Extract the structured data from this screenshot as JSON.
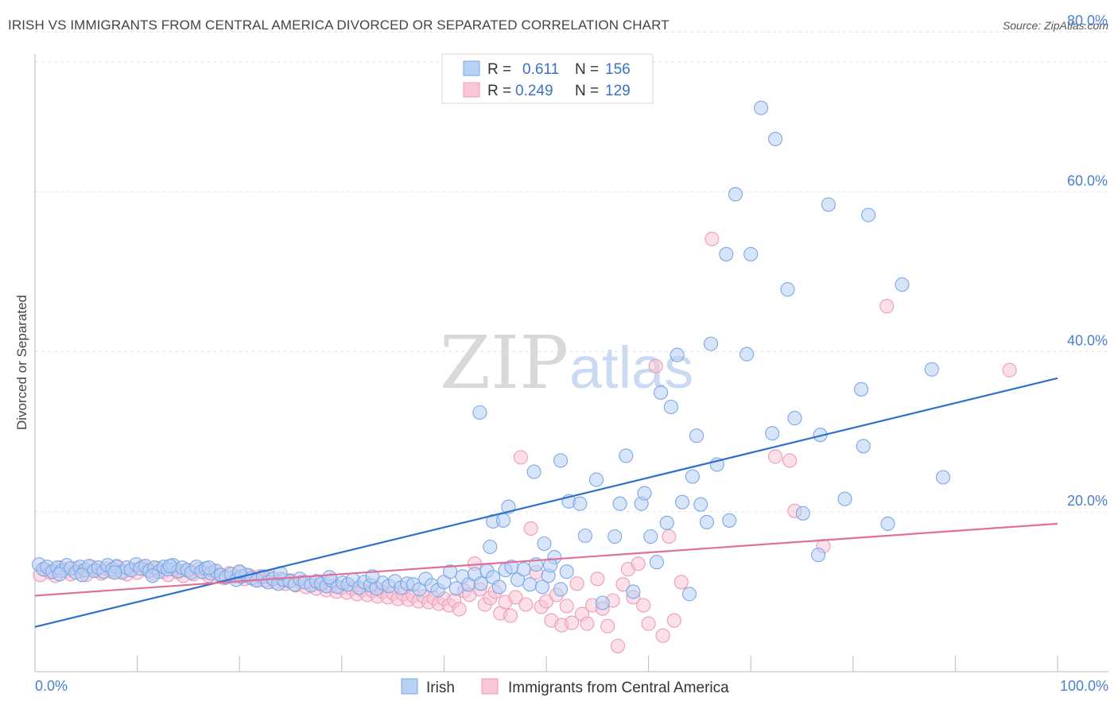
{
  "title": "IRISH VS IMMIGRANTS FROM CENTRAL AMERICA DIVORCED OR SEPARATED CORRELATION CHART",
  "source": "Source: ZipAtlas.com",
  "watermark": {
    "zip": "ZIP",
    "atlas": "atlas"
  },
  "legend": {
    "rows": [
      {
        "r_label": "R = ",
        "r_value": "0.611",
        "n_label": "N = ",
        "n_value": "156"
      },
      {
        "r_label": "R = ",
        "r_value": "0.249",
        "n_label": "N = ",
        "n_value": "129"
      }
    ]
  },
  "bottom_legend": [
    "Irish",
    "Immigrants from Central America"
  ],
  "chart_data": {
    "type": "scatter",
    "title": "IRISH VS IMMIGRANTS FROM CENTRAL AMERICA DIVORCED OR SEPARATED CORRELATION CHART",
    "xlabel": "",
    "ylabel": "Divorced or Separated",
    "xlim": [
      0,
      100
    ],
    "ylim": [
      0,
      82
    ],
    "x_ticks": [
      "0.0%",
      "100.0%"
    ],
    "y_ticks": [
      {
        "value": 20,
        "label": "20.0%"
      },
      {
        "value": 40,
        "label": "40.0%"
      },
      {
        "value": 60,
        "label": "60.0%"
      },
      {
        "value": 80,
        "label": "80.0%"
      }
    ],
    "grid": true,
    "legend_position": "top-center",
    "colors": {
      "irish": "#7aa8e8",
      "irish_fill": "#b8d0f4",
      "irish_line": "#2f6fcf",
      "ca": "#f09ab8",
      "ca_fill": "#f8c6d6",
      "ca_line": "#e0709a"
    },
    "series": [
      {
        "name": "Irish",
        "r": 0.611,
        "n": 156,
        "trend": [
          [
            0,
            5.6
          ],
          [
            100,
            36.7
          ]
        ],
        "points": [
          [
            0.4,
            13.4
          ],
          [
            0.8,
            12.8
          ],
          [
            1.2,
            13.1
          ],
          [
            1.7,
            12.5
          ],
          [
            2.2,
            13.0
          ],
          [
            2.6,
            12.6
          ],
          [
            3.1,
            13.3
          ],
          [
            3.5,
            12.9
          ],
          [
            4.0,
            12.4
          ],
          [
            4.4,
            13.1
          ],
          [
            4.9,
            12.7
          ],
          [
            5.3,
            13.2
          ],
          [
            5.8,
            12.6
          ],
          [
            6.2,
            13.0
          ],
          [
            6.7,
            12.5
          ],
          [
            7.1,
            13.3
          ],
          [
            7.6,
            12.8
          ],
          [
            8.0,
            13.1
          ],
          [
            8.5,
            12.4
          ],
          [
            9.0,
            13.0
          ],
          [
            9.4,
            12.7
          ],
          [
            9.9,
            13.4
          ],
          [
            10.3,
            12.9
          ],
          [
            10.8,
            13.2
          ],
          [
            11.2,
            12.6
          ],
          [
            11.7,
            13.0
          ],
          [
            12.1,
            12.5
          ],
          [
            12.6,
            13.1
          ],
          [
            13.0,
            12.8
          ],
          [
            13.5,
            13.3
          ],
          [
            14.0,
            12.6
          ],
          [
            14.4,
            13.0
          ],
          [
            14.9,
            12.7
          ],
          [
            15.3,
            12.4
          ],
          [
            15.8,
            13.1
          ],
          [
            16.3,
            12.5
          ],
          [
            16.7,
            12.9
          ],
          [
            17.2,
            12.3
          ],
          [
            17.7,
            12.6
          ],
          [
            18.2,
            12.1
          ],
          [
            18.7,
            11.8
          ],
          [
            19.2,
            12.2
          ],
          [
            19.7,
            11.5
          ],
          [
            20.2,
            11.9
          ],
          [
            20.7,
            12.1
          ],
          [
            21.2,
            11.7
          ],
          [
            21.7,
            11.4
          ],
          [
            22.3,
            11.9
          ],
          [
            22.8,
            11.2
          ],
          [
            23.3,
            11.6
          ],
          [
            23.8,
            11.0
          ],
          [
            24.3,
            11.5
          ],
          [
            24.9,
            11.3
          ],
          [
            25.4,
            10.9
          ],
          [
            25.9,
            11.6
          ],
          [
            26.4,
            11.2
          ],
          [
            27.0,
            10.8
          ],
          [
            27.5,
            11.3
          ],
          [
            28.0,
            11.0
          ],
          [
            28.5,
            10.7
          ],
          [
            29.0,
            11.4
          ],
          [
            29.6,
            10.6
          ],
          [
            30.1,
            11.1
          ],
          [
            30.6,
            10.9
          ],
          [
            31.1,
            11.5
          ],
          [
            31.7,
            10.5
          ],
          [
            32.2,
            11.2
          ],
          [
            32.8,
            10.8
          ],
          [
            33.4,
            10.4
          ],
          [
            34.0,
            11.1
          ],
          [
            34.6,
            10.7
          ],
          [
            35.2,
            11.3
          ],
          [
            35.8,
            10.5
          ],
          [
            36.4,
            11.0
          ],
          [
            37.0,
            10.9
          ],
          [
            37.6,
            10.3
          ],
          [
            38.2,
            11.6
          ],
          [
            38.8,
            10.8
          ],
          [
            39.4,
            10.2
          ],
          [
            40.0,
            11.2
          ],
          [
            40.6,
            12.5
          ],
          [
            41.2,
            10.4
          ],
          [
            41.8,
            11.9
          ],
          [
            42.4,
            10.9
          ],
          [
            43.0,
            12.2
          ],
          [
            43.6,
            11.0
          ],
          [
            44.2,
            12.6
          ],
          [
            44.8,
            11.8
          ],
          [
            45.4,
            10.6
          ],
          [
            46.0,
            12.7
          ],
          [
            46.6,
            13.1
          ],
          [
            47.2,
            11.5
          ],
          [
            47.8,
            12.8
          ],
          [
            48.4,
            10.9
          ],
          [
            49.0,
            13.4
          ],
          [
            49.6,
            10.6
          ],
          [
            50.2,
            12.0
          ],
          [
            50.8,
            14.3
          ],
          [
            51.4,
            10.3
          ],
          [
            52.0,
            12.5
          ],
          [
            13.2,
            13.2
          ],
          [
            11.5,
            12.0
          ],
          [
            7.8,
            12.4
          ],
          [
            4.6,
            12.1
          ],
          [
            2.4,
            12.2
          ],
          [
            17.0,
            13.0
          ],
          [
            20.0,
            12.5
          ],
          [
            24.0,
            12.3
          ],
          [
            28.8,
            11.8
          ],
          [
            33.0,
            11.9
          ],
          [
            43.5,
            32.4
          ],
          [
            44.5,
            15.6
          ],
          [
            44.8,
            18.8
          ],
          [
            45.8,
            18.9
          ],
          [
            46.3,
            20.6
          ],
          [
            48.8,
            25.0
          ],
          [
            49.8,
            16.0
          ],
          [
            50.4,
            13.3
          ],
          [
            51.4,
            26.4
          ],
          [
            52.2,
            21.3
          ],
          [
            53.3,
            21.0
          ],
          [
            53.8,
            17.0
          ],
          [
            54.9,
            24.0
          ],
          [
            55.5,
            8.6
          ],
          [
            56.7,
            16.9
          ],
          [
            57.2,
            21.0
          ],
          [
            57.8,
            27.0
          ],
          [
            58.5,
            10.0
          ],
          [
            59.3,
            21.0
          ],
          [
            59.6,
            22.3
          ],
          [
            60.2,
            16.9
          ],
          [
            60.8,
            13.7
          ],
          [
            61.2,
            34.9
          ],
          [
            61.8,
            18.6
          ],
          [
            62.2,
            33.1
          ],
          [
            62.8,
            39.6
          ],
          [
            63.3,
            21.2
          ],
          [
            64.0,
            9.7
          ],
          [
            64.3,
            24.4
          ],
          [
            64.7,
            29.5
          ],
          [
            65.1,
            20.9
          ],
          [
            65.7,
            18.7
          ],
          [
            66.1,
            41.0
          ],
          [
            66.7,
            25.9
          ],
          [
            67.6,
            52.2
          ],
          [
            67.9,
            18.9
          ],
          [
            68.5,
            59.7
          ],
          [
            69.6,
            39.7
          ],
          [
            70.0,
            52.2
          ],
          [
            71.0,
            70.5
          ],
          [
            72.1,
            29.8
          ],
          [
            72.4,
            66.6
          ],
          [
            73.6,
            47.8
          ],
          [
            74.3,
            31.7
          ],
          [
            75.1,
            19.8
          ],
          [
            76.6,
            14.6
          ],
          [
            76.8,
            29.6
          ],
          [
            77.6,
            58.4
          ],
          [
            79.2,
            21.6
          ],
          [
            80.8,
            35.3
          ],
          [
            81.0,
            28.2
          ],
          [
            81.5,
            57.1
          ],
          [
            83.4,
            18.5
          ],
          [
            84.8,
            48.4
          ],
          [
            87.7,
            37.8
          ],
          [
            88.8,
            24.3
          ]
        ]
      },
      {
        "name": "Immigrants from Central America",
        "r": 0.249,
        "n": 129,
        "trend": [
          [
            0,
            9.5
          ],
          [
            100,
            18.5
          ]
        ],
        "points": [
          [
            0.5,
            12.1
          ],
          [
            1.0,
            12.8
          ],
          [
            1.5,
            12.4
          ],
          [
            2.0,
            12.0
          ],
          [
            2.5,
            13.0
          ],
          [
            3.0,
            12.6
          ],
          [
            3.5,
            12.2
          ],
          [
            4.0,
            12.9
          ],
          [
            4.5,
            12.5
          ],
          [
            5.0,
            12.1
          ],
          [
            5.5,
            13.1
          ],
          [
            6.0,
            12.7
          ],
          [
            6.5,
            12.3
          ],
          [
            7.0,
            12.9
          ],
          [
            7.5,
            12.5
          ],
          [
            8.0,
            13.2
          ],
          [
            8.5,
            12.6
          ],
          [
            9.0,
            12.2
          ],
          [
            9.5,
            12.8
          ],
          [
            10.0,
            12.4
          ],
          [
            10.5,
            13.1
          ],
          [
            11.0,
            12.7
          ],
          [
            11.5,
            12.3
          ],
          [
            12.0,
            12.9
          ],
          [
            12.5,
            12.5
          ],
          [
            13.0,
            12.1
          ],
          [
            13.5,
            12.8
          ],
          [
            14.0,
            12.4
          ],
          [
            14.5,
            12.0
          ],
          [
            15.0,
            12.6
          ],
          [
            15.5,
            12.2
          ],
          [
            16.0,
            12.8
          ],
          [
            16.5,
            12.4
          ],
          [
            17.0,
            12.0
          ],
          [
            17.5,
            12.5
          ],
          [
            18.0,
            12.1
          ],
          [
            18.5,
            11.7
          ],
          [
            19.0,
            12.3
          ],
          [
            19.5,
            11.9
          ],
          [
            20.0,
            12.4
          ],
          [
            20.5,
            11.6
          ],
          [
            21.0,
            12.0
          ],
          [
            21.5,
            11.5
          ],
          [
            22.0,
            11.9
          ],
          [
            22.5,
            11.4
          ],
          [
            23.0,
            11.8
          ],
          [
            23.5,
            11.2
          ],
          [
            24.0,
            11.6
          ],
          [
            24.5,
            11.0
          ],
          [
            25.0,
            11.4
          ],
          [
            25.5,
            10.8
          ],
          [
            26.0,
            11.2
          ],
          [
            26.5,
            10.6
          ],
          [
            27.0,
            11.1
          ],
          [
            27.5,
            10.4
          ],
          [
            28.0,
            10.9
          ],
          [
            28.5,
            10.2
          ],
          [
            29.0,
            10.7
          ],
          [
            29.5,
            10.0
          ],
          [
            30.0,
            10.5
          ],
          [
            30.5,
            9.9
          ],
          [
            31.0,
            10.4
          ],
          [
            31.5,
            9.7
          ],
          [
            32.0,
            10.2
          ],
          [
            32.5,
            9.6
          ],
          [
            33.0,
            10.1
          ],
          [
            33.5,
            9.4
          ],
          [
            34.0,
            10.0
          ],
          [
            34.5,
            9.3
          ],
          [
            35.0,
            9.8
          ],
          [
            35.5,
            9.1
          ],
          [
            36.0,
            9.7
          ],
          [
            36.5,
            9.0
          ],
          [
            37.0,
            9.5
          ],
          [
            37.5,
            8.8
          ],
          [
            38.0,
            9.4
          ],
          [
            38.5,
            8.7
          ],
          [
            39.0,
            9.2
          ],
          [
            39.5,
            8.5
          ],
          [
            40.0,
            9.1
          ],
          [
            40.5,
            8.3
          ],
          [
            41.0,
            8.9
          ],
          [
            41.5,
            7.8
          ],
          [
            42.0,
            10.1
          ],
          [
            42.5,
            9.6
          ],
          [
            43.0,
            13.5
          ],
          [
            43.5,
            10.3
          ],
          [
            44.0,
            8.4
          ],
          [
            44.5,
            9.2
          ],
          [
            45.0,
            10.0
          ],
          [
            45.5,
            7.3
          ],
          [
            46.0,
            8.7
          ],
          [
            46.5,
            7.0
          ],
          [
            47.0,
            9.3
          ],
          [
            47.5,
            26.8
          ],
          [
            48.0,
            8.4
          ],
          [
            48.5,
            17.9
          ],
          [
            49.0,
            12.4
          ],
          [
            49.5,
            8.1
          ],
          [
            50.0,
            8.8
          ],
          [
            50.5,
            6.4
          ],
          [
            51.0,
            9.6
          ],
          [
            51.5,
            5.8
          ],
          [
            52.0,
            8.2
          ],
          [
            52.5,
            6.1
          ],
          [
            53.0,
            11.0
          ],
          [
            53.5,
            7.2
          ],
          [
            54.0,
            6.0
          ],
          [
            54.5,
            8.3
          ],
          [
            55.0,
            11.6
          ],
          [
            55.5,
            7.9
          ],
          [
            56.0,
            5.7
          ],
          [
            56.5,
            8.9
          ],
          [
            57.0,
            3.2
          ],
          [
            57.5,
            10.9
          ],
          [
            58.0,
            12.8
          ],
          [
            58.5,
            9.3
          ],
          [
            59.0,
            13.5
          ],
          [
            59.5,
            8.3
          ],
          [
            60.0,
            6.0
          ],
          [
            60.7,
            38.2
          ],
          [
            61.4,
            4.5
          ],
          [
            62.0,
            16.9
          ],
          [
            62.5,
            6.4
          ],
          [
            63.2,
            11.2
          ],
          [
            66.2,
            54.1
          ],
          [
            72.4,
            26.9
          ],
          [
            73.8,
            26.4
          ],
          [
            74.3,
            20.1
          ],
          [
            77.1,
            15.7
          ],
          [
            83.3,
            45.7
          ],
          [
            95.3,
            37.7
          ]
        ]
      }
    ]
  }
}
